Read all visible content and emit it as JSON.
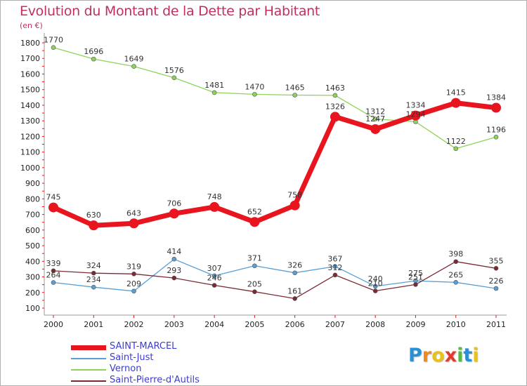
{
  "chart_data": {
    "type": "line",
    "title": "Evolution du Montant de la Dette par Habitant",
    "subtitle": "(en €)",
    "xlabel": "",
    "ylabel": "",
    "categories": [
      "2000",
      "2001",
      "2002",
      "2003",
      "2004",
      "2005",
      "2006",
      "2007",
      "2008",
      "2009",
      "2010",
      "2011"
    ],
    "ylim": [
      100,
      1800
    ],
    "yticks": [
      100,
      200,
      300,
      400,
      500,
      600,
      700,
      800,
      900,
      1000,
      1100,
      1200,
      1300,
      1400,
      1500,
      1600,
      1700,
      1800
    ],
    "grid": false,
    "legend_position": "bottom-left",
    "series": [
      {
        "name": "SAINT-MARCEL",
        "color": "#e8141e",
        "values": [
          745,
          630,
          643,
          706,
          748,
          652,
          758,
          1326,
          1247,
          1334,
          1415,
          1384
        ]
      },
      {
        "name": "Saint-Just",
        "color": "#5a9fd4",
        "values": [
          264,
          234,
          209,
          414,
          307,
          371,
          326,
          367,
          240,
          275,
          265,
          226
        ]
      },
      {
        "name": "Vernon",
        "color": "#8fd25a",
        "values": [
          1770,
          1696,
          1649,
          1576,
          1481,
          1470,
          1465,
          1463,
          1312,
          1294,
          1122,
          1196
        ]
      },
      {
        "name": "Saint-Pierre-d'Autils",
        "color": "#7b2a34",
        "values": [
          339,
          324,
          319,
          293,
          246,
          205,
          161,
          312,
          210,
          251,
          398,
          355
        ]
      }
    ]
  },
  "logo": {
    "letters": [
      "P",
      "r",
      "o",
      "x",
      "i",
      "t",
      "i"
    ],
    "colors": [
      "#2b8fd6",
      "#f08a1c",
      "#e8c21a",
      "#e23a2c",
      "#58b947",
      "#2b8fd6",
      "#e8c21a"
    ]
  }
}
